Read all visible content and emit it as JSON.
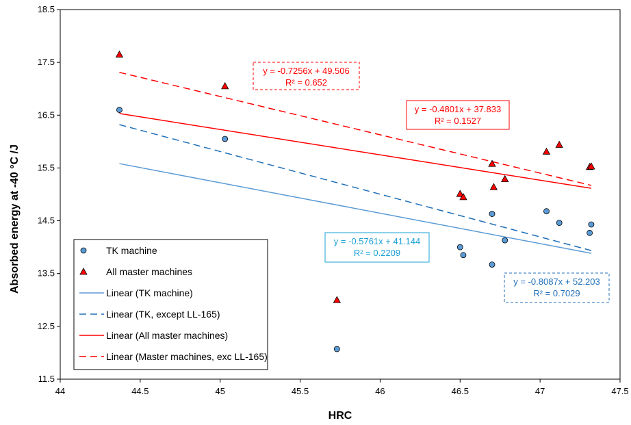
{
  "chart_data": {
    "type": "scatter",
    "xlabel": "HRC",
    "ylabel": "Absorbed energy at -40 °C /J",
    "xlim": [
      44,
      47.5
    ],
    "ylim": [
      11.5,
      18.5
    ],
    "x_ticks": [
      "44",
      "44.5",
      "45",
      "45.5",
      "46",
      "46.5",
      "47",
      "47.5"
    ],
    "y_ticks": [
      "11.5",
      "12.5",
      "13.5",
      "14.5",
      "15.5",
      "16.5",
      "17.5",
      "18.5"
    ],
    "grid": false,
    "legend_position": "bottom-left",
    "series": [
      {
        "name": "TK machine",
        "marker": "circle",
        "color": "#5b9bd5",
        "points": [
          [
            44.37,
            16.6
          ],
          [
            45.03,
            16.05
          ],
          [
            45.73,
            12.07
          ],
          [
            46.5,
            14.0
          ],
          [
            46.52,
            13.85
          ],
          [
            46.7,
            14.63
          ],
          [
            46.7,
            13.67
          ],
          [
            46.78,
            14.13
          ],
          [
            47.04,
            14.68
          ],
          [
            47.12,
            14.46
          ],
          [
            47.31,
            14.27
          ],
          [
            47.32,
            14.43
          ]
        ]
      },
      {
        "name": "All master machines",
        "marker": "triangle",
        "color": "#ff0000",
        "points": [
          [
            44.37,
            17.65
          ],
          [
            45.03,
            17.05
          ],
          [
            45.73,
            13.0
          ],
          [
            46.5,
            15.01
          ],
          [
            46.52,
            14.95
          ],
          [
            46.7,
            15.58
          ],
          [
            46.71,
            15.14
          ],
          [
            46.78,
            15.29
          ],
          [
            47.04,
            15.81
          ],
          [
            47.12,
            15.94
          ],
          [
            47.31,
            15.52
          ],
          [
            47.32,
            15.53
          ]
        ]
      }
    ],
    "trendlines": [
      {
        "name": "Linear (TK machine)",
        "slope": -0.5761,
        "intercept": 41.144,
        "x_range": [
          44.37,
          47.32
        ],
        "color": "#5b9bd5",
        "dash": "solid"
      },
      {
        "name": "Linear (TK, except LL-165)",
        "slope": -0.8087,
        "intercept": 52.203,
        "x_range": [
          44.37,
          47.32
        ],
        "color": "#1f6fb8",
        "dash": "dashed"
      },
      {
        "name": "Linear (All master machines)",
        "slope": -0.4801,
        "intercept": 37.833,
        "x_range": [
          44.37,
          47.32
        ],
        "color": "#ff0000",
        "dash": "solid"
      },
      {
        "name": "Linear (Master machines, exc LL-165)",
        "slope": -0.7256,
        "intercept": 49.506,
        "x_range": [
          44.37,
          47.32
        ],
        "color": "#ff0000",
        "dash": "dashed"
      }
    ],
    "annotations": [
      {
        "line1": "y = -0.7256x + 49.506",
        "line2": "R² = 0.652",
        "color": "#ff0000",
        "border": "dashed"
      },
      {
        "line1": "y = -0.4801x + 37.833",
        "line2": "R² = 0.1527",
        "color": "#ff0000",
        "border": "solid"
      },
      {
        "line1": "y = -0.5761x + 41.144",
        "line2": "R² = 0.2209",
        "color": "#1ba1d6",
        "border": "solid"
      },
      {
        "line1": "y = -0.8087x + 52.203",
        "line2": "R² = 0.7029",
        "color": "#1f6fb8",
        "border": "dashed"
      }
    ],
    "legend": [
      "TK machine",
      "All master machines",
      "Linear (TK machine)",
      "Linear (TK, except LL-165)",
      "Linear (All master machines)",
      "Linear (Master machines, exc LL-165)"
    ]
  }
}
